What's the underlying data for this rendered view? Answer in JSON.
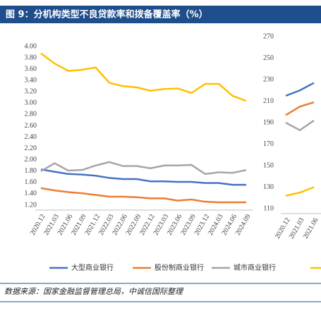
{
  "header": {
    "title": "图 9：分机构类型不良贷款率和拨备覆盖率（%）"
  },
  "chart_data": [
    {
      "type": "line",
      "categories": [
        "2020.12",
        "2021.03",
        "2021.06",
        "2021.09",
        "2021.12",
        "2022.03",
        "2022.06",
        "2022.09",
        "2022.12",
        "2023.03",
        "2023.06",
        "2023.09",
        "2023.12",
        "2024.03",
        "2024.06",
        "2024.09"
      ],
      "ylim": [
        1.2,
        4.0
      ],
      "yticks": [
        {
          "value": 1.2,
          "label": "1.20"
        },
        {
          "value": 1.4,
          "label": "1.40"
        },
        {
          "value": 1.6,
          "label": "1.60"
        },
        {
          "value": 1.8,
          "label": "1.80"
        },
        {
          "value": 2.0,
          "label": "2.00"
        },
        {
          "value": 2.2,
          "label": "2.20"
        },
        {
          "value": 2.4,
          "label": "2.40"
        },
        {
          "value": 2.6,
          "label": "2.60"
        },
        {
          "value": 2.8,
          "label": "2.80"
        },
        {
          "value": 3.0,
          "label": "3.00"
        },
        {
          "value": 3.2,
          "label": "3.20"
        },
        {
          "value": 3.4,
          "label": "3.40"
        },
        {
          "value": 3.6,
          "label": "3.60"
        },
        {
          "value": 3.8,
          "label": "3.80"
        },
        {
          "value": 4.0,
          "label": "4.00"
        }
      ],
      "series": [
        {
          "name": "大型商业银行",
          "color": "#4472c4",
          "values": [
            1.83,
            1.79,
            1.75,
            1.74,
            1.72,
            1.68,
            1.66,
            1.66,
            1.62,
            1.62,
            1.61,
            1.61,
            1.59,
            1.59,
            1.56,
            1.56
          ]
        },
        {
          "name": "股份制商业银行",
          "color": "#ed7d31",
          "values": [
            1.5,
            1.46,
            1.43,
            1.41,
            1.38,
            1.35,
            1.35,
            1.34,
            1.32,
            1.32,
            1.28,
            1.3,
            1.26,
            1.25,
            1.25,
            1.25
          ]
        },
        {
          "name": "城市商业银行",
          "color": "#a5a5a5",
          "values": [
            1.8,
            1.94,
            1.81,
            1.82,
            1.9,
            1.96,
            1.89,
            1.89,
            1.85,
            1.9,
            1.9,
            1.91,
            1.75,
            1.78,
            1.77,
            1.82
          ]
        },
        {
          "color": "#ffc000",
          "values": [
            3.88,
            3.7,
            3.57,
            3.59,
            3.63,
            3.36,
            3.3,
            3.28,
            3.22,
            3.25,
            3.26,
            3.18,
            3.34,
            3.34,
            3.13,
            3.04
          ]
        }
      ]
    },
    {
      "type": "line",
      "categories": [
        "2020.12",
        "2021.03",
        "2021.06"
      ],
      "ylim": [
        110,
        270
      ],
      "yticks": [
        110,
        130,
        150,
        170,
        190,
        210,
        230,
        250,
        270
      ],
      "series": [
        {
          "color": "#4472c4",
          "values": [
            215,
            220,
            227
          ]
        },
        {
          "color": "#ed7d31",
          "values": [
            197,
            205,
            209
          ]
        },
        {
          "color": "#a5a5a5",
          "values": [
            190,
            183,
            192
          ]
        },
        {
          "color": "#ffc000",
          "values": [
            122,
            125,
            130
          ]
        }
      ]
    }
  ],
  "source": "数据来源：国家金融监督管理总局，中诚信国际整理"
}
